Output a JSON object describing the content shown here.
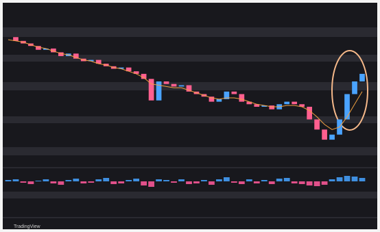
{
  "chart_data": {
    "type": "candlestick",
    "brand": "TradingView",
    "ylim": [
      0,
      100
    ],
    "series": [
      {
        "color": "#4aa3ff",
        "down_color": "#ff5f8f",
        "values": [
          95,
          92,
          90,
          88,
          85,
          86,
          83,
          80,
          82,
          78,
          76,
          77,
          74,
          72,
          70,
          71,
          68,
          66,
          62,
          45,
          60,
          58,
          56,
          57,
          52,
          50,
          48,
          44,
          46,
          52,
          50,
          44,
          42,
          40,
          41,
          38,
          42,
          44,
          42,
          40,
          30,
          22,
          14,
          18,
          30,
          50,
          60,
          66
        ]
      },
      {
        "color": "#f0a040",
        "values": [
          93,
          92,
          91,
          89,
          87,
          86,
          84,
          82,
          81,
          79,
          77,
          76,
          74,
          73,
          71,
          70,
          68,
          66,
          63,
          58,
          57,
          56,
          55,
          55,
          53,
          51,
          49,
          47,
          46,
          47,
          47,
          46,
          44,
          42,
          41,
          40,
          40,
          41,
          41,
          40,
          37,
          32,
          26,
          22,
          24,
          32,
          42,
          52
        ]
      }
    ],
    "oscillator": {
      "ylim": [
        -1,
        1
      ],
      "up_color": "#3f8fe0",
      "down_color": "#e0508a",
      "values": [
        0.2,
        0.3,
        -0.2,
        -0.4,
        0.1,
        0.3,
        -0.3,
        -0.5,
        0.2,
        0.4,
        -0.3,
        -0.2,
        0.3,
        0.5,
        -0.4,
        -0.3,
        0.2,
        0.4,
        -0.6,
        -0.8,
        0.3,
        0.2,
        -0.2,
        0.3,
        -0.4,
        -0.3,
        0.2,
        -0.5,
        0.3,
        0.6,
        -0.2,
        -0.4,
        0.3,
        -0.3,
        0.2,
        -0.4,
        0.4,
        0.5,
        -0.3,
        -0.4,
        -0.6,
        -0.7,
        -0.5,
        0.3,
        0.6,
        0.8,
        0.7,
        0.5
      ]
    }
  }
}
